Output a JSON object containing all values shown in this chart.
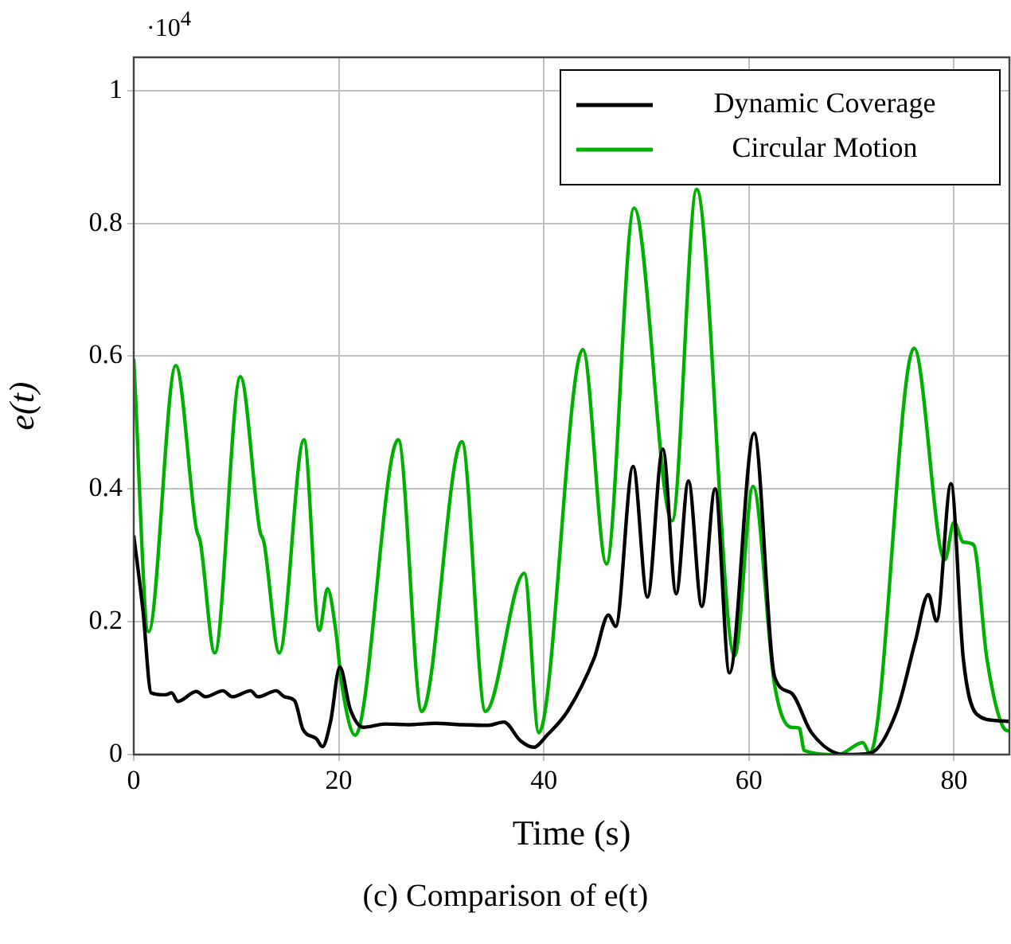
{
  "chart_data": {
    "type": "line",
    "xlabel": "Time (s)",
    "ylabel": "e(t)",
    "annotations": [
      "·10$^{4}$",
      "(c) Comparison of e(t)"
    ],
    "xlim": [
      0,
      85.4
    ],
    "xticks": [
      0,
      20,
      40,
      60,
      80
    ],
    "ylim": [
      0,
      1.05
    ],
    "yticks": [
      0,
      0.2,
      0.4,
      0.6,
      0.8,
      1
    ],
    "grid": true,
    "legend": "top right",
    "marker": "none",
    "line_style": "solid",
    "series": [
      {
        "name": "Dynamic Coverage",
        "color": "#000000",
        "x": [
          0,
          0.9,
          1.7,
          3.1,
          3.7,
          4.3,
          6.1,
          7,
          8.7,
          9.6,
          11.4,
          12.1,
          13.9,
          14.7,
          15.7,
          16.5,
          17.8,
          18.4,
          19.2,
          20.1,
          21.1,
          22.4,
          24.5,
          26.8,
          29.4,
          32,
          34.6,
          36.1,
          37.7,
          39,
          40.3,
          42.3,
          44.9,
          46.3,
          47,
          48.7,
          50.1,
          51.6,
          52.9,
          54.1,
          55.4,
          56.7,
          58.1,
          60.5,
          62.5,
          64.1,
          66.1,
          69.3,
          71.8,
          74.4,
          76.2,
          77.5,
          78.3,
          79.7,
          80.9,
          82.2,
          84.3,
          85.4
        ],
        "values": [
          0.33,
          0.217,
          0.093,
          0.09,
          0.093,
          0.08,
          0.095,
          0.087,
          0.096,
          0.087,
          0.096,
          0.087,
          0.096,
          0.087,
          0.081,
          0.038,
          0.024,
          0.012,
          0.05,
          0.132,
          0.069,
          0.041,
          0.046,
          0.045,
          0.047,
          0.045,
          0.044,
          0.049,
          0.021,
          0.011,
          0.029,
          0.065,
          0.145,
          0.21,
          0.193,
          0.434,
          0.237,
          0.46,
          0.242,
          0.412,
          0.223,
          0.4,
          0.123,
          0.484,
          0.117,
          0.093,
          0.033,
          0,
          0.002,
          0.065,
          0.169,
          0.241,
          0.201,
          0.408,
          0.145,
          0.061,
          0.051,
          0.05
        ]
      },
      {
        "name": "Circular Motion",
        "color": "#00b000",
        "x": [
          0,
          1.45,
          4.1,
          6.1,
          6.5,
          7.9,
          10.4,
          12.3,
          12.7,
          14.2,
          16.6,
          18.1,
          18.9,
          19.7,
          20.3,
          21.6,
          25.8,
          28.1,
          32,
          34.3,
          38.1,
          39.5,
          43.8,
          46.1,
          48.8,
          52.5,
          54.9,
          58.6,
          60.4,
          62.5,
          64.1,
          64.9,
          65.4,
          68.7,
          71.1,
          71.8,
          76.1,
          79.1,
          80,
          80.9,
          81.9,
          83.2,
          84.8,
          85.4
        ],
        "values": [
          0.596,
          0.185,
          0.586,
          0.34,
          0.32,
          0.153,
          0.569,
          0.337,
          0.32,
          0.153,
          0.474,
          0.187,
          0.25,
          0.187,
          0.105,
          0.029,
          0.474,
          0.065,
          0.471,
          0.065,
          0.273,
          0.033,
          0.61,
          0.287,
          0.823,
          0.352,
          0.851,
          0.149,
          0.404,
          0.105,
          0.041,
          0.04,
          0.006,
          0,
          0.018,
          0.002,
          0.612,
          0.293,
          0.35,
          0.32,
          0.316,
          0.145,
          0.041,
          0.035
        ]
      }
    ]
  }
}
